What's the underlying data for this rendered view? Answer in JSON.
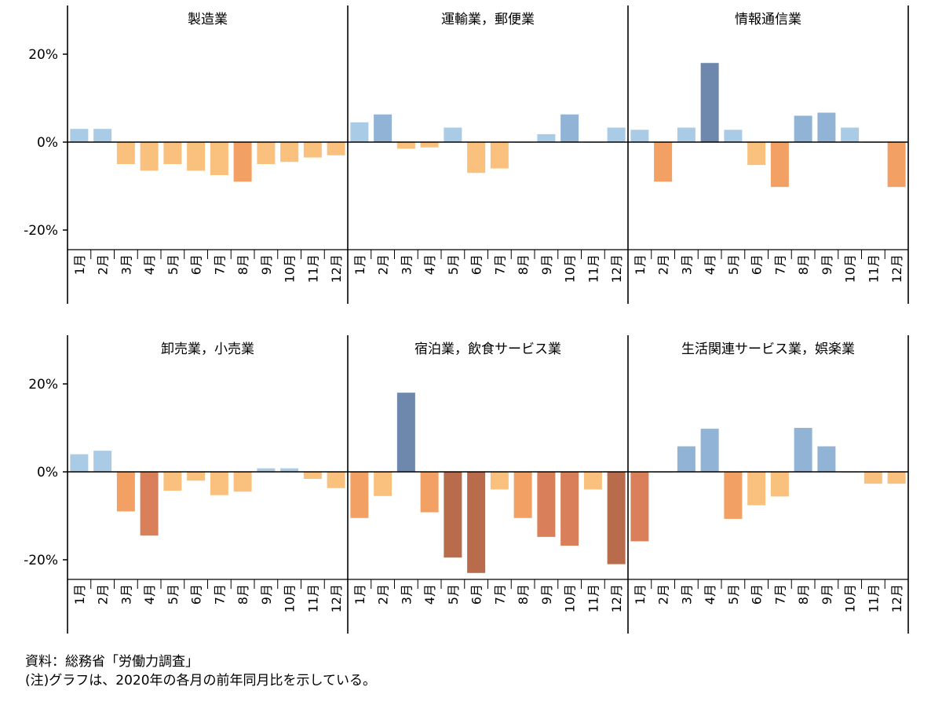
{
  "chart_data": {
    "type": "bar",
    "categories": [
      "1月",
      "2月",
      "3月",
      "4月",
      "5月",
      "6月",
      "7月",
      "8月",
      "9月",
      "10月",
      "11月",
      "12月"
    ],
    "yticks": [
      {
        "value": 20,
        "label": "20%"
      },
      {
        "value": 0,
        "label": "0%"
      },
      {
        "value": -20,
        "label": "-20%"
      }
    ],
    "ylim": [
      -25,
      30
    ],
    "color_scale": {
      "strong_pos": "#6e87ad",
      "mid_pos": "#91b3d6",
      "weak_pos": "#a9cbe6",
      "weak_neg": "#f9c07e",
      "mid_neg": "#f3a064",
      "strong_neg": "#d9805a",
      "very_strong_neg": "#b96c4c",
      "axis": "#000000"
    },
    "panels": [
      {
        "title": "製造業",
        "values": [
          3,
          3,
          -5,
          -6.5,
          -5,
          -6.5,
          -7.5,
          -9,
          -5,
          -4.5,
          -3.5,
          -3
        ]
      },
      {
        "title": "運輸業，郵便業",
        "values": [
          4.5,
          6.3,
          -1.5,
          -1.2,
          3.3,
          -7,
          -6,
          0,
          1.8,
          6.3,
          0,
          3.3
        ]
      },
      {
        "title": "情報通信業",
        "values": [
          2.8,
          -9,
          3.3,
          18,
          2.8,
          -5.2,
          -10.2,
          6,
          6.7,
          3.3,
          0,
          -10.2
        ]
      },
      {
        "title": "卸売業，小売業",
        "values": [
          4,
          4.8,
          -9,
          -14.5,
          -4.3,
          -2,
          -5.3,
          -4.5,
          0.8,
          0.8,
          -1.6,
          -3.7
        ]
      },
      {
        "title": "宿泊業，飲食サービス業",
        "values": [
          -10.5,
          -5.5,
          18,
          -9.2,
          -19.5,
          -23,
          -4,
          -10.5,
          -14.8,
          -16.8,
          -4,
          -21
        ]
      },
      {
        "title": "生活関連サービス業，娯楽業",
        "values": [
          -15.8,
          0,
          5.8,
          9.8,
          -10.7,
          -7.6,
          -5.6,
          10,
          5.8,
          0,
          -2.7,
          -2.7
        ]
      }
    ]
  },
  "notes": {
    "source": "資料：総務省「労働力調査」",
    "remark": "(注)グラフは、2020年の各月の前年同月比を示している。"
  }
}
